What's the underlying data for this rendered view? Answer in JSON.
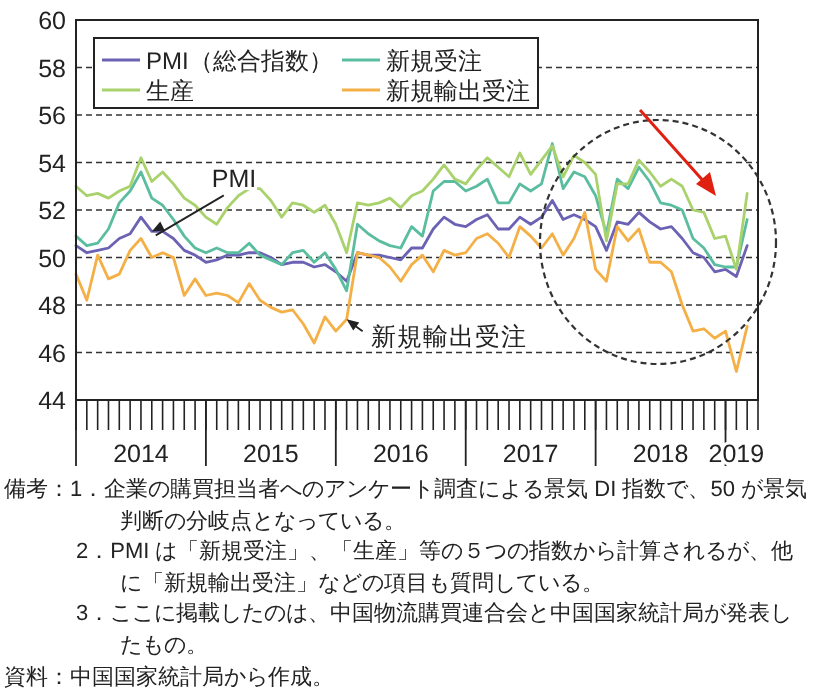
{
  "chart_data": {
    "type": "line",
    "x": [
      "2014-01",
      "2014-02",
      "2014-03",
      "2014-04",
      "2014-05",
      "2014-06",
      "2014-07",
      "2014-08",
      "2014-09",
      "2014-10",
      "2014-11",
      "2014-12",
      "2015-01",
      "2015-02",
      "2015-03",
      "2015-04",
      "2015-05",
      "2015-06",
      "2015-07",
      "2015-08",
      "2015-09",
      "2015-10",
      "2015-11",
      "2015-12",
      "2016-01",
      "2016-02",
      "2016-03",
      "2016-04",
      "2016-05",
      "2016-06",
      "2016-07",
      "2016-08",
      "2016-09",
      "2016-10",
      "2016-11",
      "2016-12",
      "2017-01",
      "2017-02",
      "2017-03",
      "2017-04",
      "2017-05",
      "2017-06",
      "2017-07",
      "2017-08",
      "2017-09",
      "2017-10",
      "2017-11",
      "2017-12",
      "2018-01",
      "2018-02",
      "2018-03",
      "2018-04",
      "2018-05",
      "2018-06",
      "2018-07",
      "2018-08",
      "2018-09",
      "2018-10",
      "2018-11",
      "2018-12",
      "2019-01",
      "2019-02",
      "2019-03"
    ],
    "series": [
      {
        "name": "PMI（総合指数）",
        "color": "#6b62b3",
        "values": [
          50.5,
          50.2,
          50.3,
          50.4,
          50.8,
          51.0,
          51.7,
          51.1,
          51.1,
          50.8,
          50.3,
          50.1,
          49.8,
          49.9,
          50.1,
          50.1,
          50.2,
          50.2,
          50.0,
          49.7,
          49.8,
          49.8,
          49.6,
          49.7,
          49.4,
          49.0,
          50.2,
          50.1,
          50.1,
          50.0,
          49.9,
          50.4,
          50.4,
          51.2,
          51.7,
          51.4,
          51.3,
          51.6,
          51.8,
          51.2,
          51.2,
          51.7,
          51.4,
          51.7,
          52.4,
          51.6,
          51.8,
          51.6,
          51.3,
          50.3,
          51.5,
          51.4,
          51.9,
          51.5,
          51.2,
          51.3,
          50.8,
          50.2,
          50.0,
          49.4,
          49.5,
          49.2,
          50.5
        ]
      },
      {
        "name": "新規受注",
        "color": "#5bbd9f",
        "values": [
          50.9,
          50.5,
          50.6,
          51.2,
          52.3,
          52.8,
          53.6,
          52.5,
          52.2,
          51.6,
          50.9,
          50.4,
          50.2,
          50.4,
          50.2,
          50.2,
          50.6,
          50.1,
          49.9,
          49.7,
          50.2,
          50.3,
          49.8,
          50.2,
          49.5,
          48.6,
          51.4,
          51.0,
          50.7,
          50.5,
          50.4,
          51.3,
          50.9,
          52.8,
          53.2,
          53.2,
          52.8,
          53.0,
          53.3,
          52.3,
          52.3,
          53.1,
          52.8,
          53.1,
          54.8,
          52.9,
          53.6,
          53.4,
          52.6,
          51.0,
          53.3,
          52.9,
          53.8,
          53.2,
          52.3,
          52.2,
          52.0,
          50.8,
          50.4,
          49.7,
          49.6,
          49.6,
          51.6
        ]
      },
      {
        "name": "生産",
        "color": "#a9d26c",
        "values": [
          53.0,
          52.6,
          52.7,
          52.5,
          52.8,
          53.0,
          54.2,
          53.2,
          53.6,
          53.1,
          52.5,
          52.2,
          51.7,
          51.4,
          52.1,
          52.6,
          52.9,
          52.9,
          52.4,
          51.7,
          52.3,
          52.2,
          51.9,
          52.2,
          51.4,
          50.2,
          52.3,
          52.2,
          52.3,
          52.5,
          52.1,
          52.6,
          52.8,
          53.3,
          53.9,
          53.3,
          53.1,
          53.7,
          54.2,
          53.8,
          53.4,
          54.4,
          53.5,
          54.1,
          54.7,
          53.4,
          54.3,
          54.0,
          53.5,
          50.7,
          53.1,
          53.1,
          54.1,
          53.6,
          53.0,
          53.3,
          53.0,
          52.0,
          51.9,
          50.8,
          50.9,
          49.5,
          52.7
        ]
      },
      {
        "name": "新規輸出受注",
        "color": "#f4b047",
        "values": [
          49.3,
          48.2,
          50.1,
          49.1,
          49.3,
          50.3,
          50.8,
          50.0,
          50.2,
          50.0,
          48.4,
          49.1,
          48.4,
          48.5,
          48.4,
          48.1,
          48.9,
          48.2,
          47.9,
          47.7,
          47.8,
          47.2,
          46.4,
          47.5,
          46.9,
          47.4,
          50.2,
          50.1,
          50.0,
          49.6,
          49.0,
          49.7,
          50.1,
          49.4,
          50.3,
          50.1,
          50.2,
          50.8,
          51.0,
          50.6,
          50.0,
          51.3,
          50.9,
          50.4,
          51.0,
          50.1,
          50.8,
          51.9,
          49.5,
          49.0,
          51.3,
          50.7,
          51.2,
          49.8,
          49.8,
          49.4,
          48.0,
          46.9,
          47.0,
          46.6,
          46.9,
          45.2,
          47.1
        ]
      }
    ],
    "xlim": [
      "2014-01",
      "2019-04"
    ],
    "xticks": [
      {
        "value": "2014-01",
        "label": null
      },
      {
        "value": "2014-07",
        "label": "2014"
      },
      {
        "value": "2015-01",
        "label": null
      },
      {
        "value": "2015-07",
        "label": "2015"
      },
      {
        "value": "2016-01",
        "label": null
      },
      {
        "value": "2016-07",
        "label": "2016"
      },
      {
        "value": "2017-01",
        "label": null
      },
      {
        "value": "2017-07",
        "label": "2017"
      },
      {
        "value": "2018-01",
        "label": null
      },
      {
        "value": "2018-07",
        "label": "2018"
      },
      {
        "value": "2019-01",
        "label": null
      },
      {
        "value": "2019-02",
        "label": "2019"
      }
    ],
    "ylim": [
      44,
      60
    ],
    "yticks": [
      44,
      46,
      48,
      50,
      52,
      54,
      56,
      58,
      60
    ],
    "grid": "y",
    "legend": "top left",
    "marker": "none",
    "line_style": "solid",
    "annotations": [
      {
        "text": "PMI",
        "x": "2014-08",
        "y": 51.1
      },
      {
        "text": "新規輸出受注",
        "x": "2016-02",
        "y": 47.4
      },
      "備考：1．企業の購買担当者へのアンケート調査による景気 DI 指数で、50 が景気判断の分岐点となっている。",
      "2．PMI は「新規受注」、「生産」等の５つの指数から計算されるが、他に「新規輸出受注」などの項目も質問している。",
      "3．ここに掲載したのは、中国物流購買連合会と中国国家統計局が発表したもの。",
      "資料：中国国家統計局から作成。"
    ]
  }
}
